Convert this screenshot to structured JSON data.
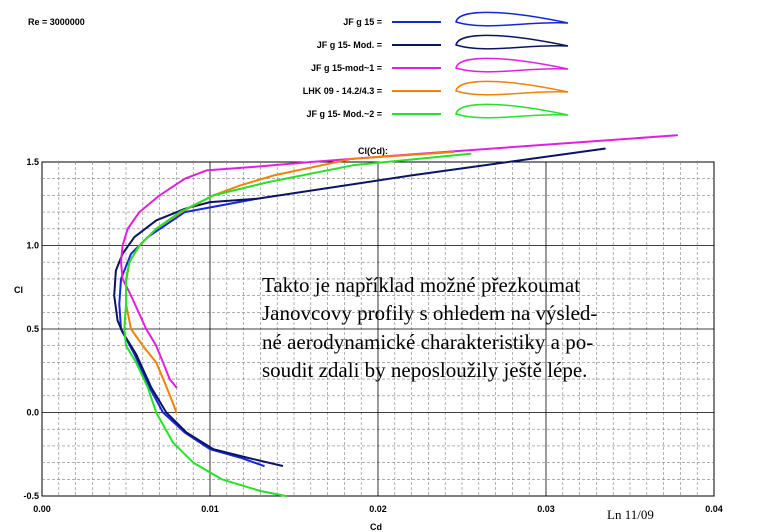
{
  "header": {
    "reynolds": "Re = 3000000"
  },
  "chart_data": {
    "type": "line",
    "title": "Cl(Cd):",
    "xlabel": "Cd",
    "ylabel": "Cl",
    "xlim": [
      0.0,
      0.04
    ],
    "ylim": [
      -0.5,
      1.5
    ],
    "x_ticks": [
      "0.00",
      "0.01",
      "0.02",
      "0.03",
      "0.04"
    ],
    "y_ticks": [
      "1.5",
      "1.0",
      "0.5",
      "0.0",
      "-0.5"
    ],
    "grid": true,
    "legend_position": "top",
    "series": [
      {
        "name": "JF g  15 =",
        "color": "#1428d8",
        "points": [
          [
            0.0128,
            1.28
          ],
          [
            0.0085,
            1.2
          ],
          [
            0.0063,
            1.05
          ],
          [
            0.0053,
            0.95
          ],
          [
            0.0047,
            0.8
          ],
          [
            0.0046,
            0.65
          ],
          [
            0.0047,
            0.5
          ],
          [
            0.0055,
            0.35
          ],
          [
            0.0064,
            0.15
          ],
          [
            0.0072,
            0.0
          ],
          [
            0.0085,
            -0.12
          ],
          [
            0.01,
            -0.22
          ],
          [
            0.0118,
            -0.27
          ],
          [
            0.0132,
            -0.32
          ]
        ]
      },
      {
        "name": "JF g  15- Mod. =",
        "color": "#0a1460",
        "points": [
          [
            0.0335,
            1.58
          ],
          [
            0.022,
            1.42
          ],
          [
            0.0128,
            1.28
          ],
          [
            0.01,
            1.26
          ],
          [
            0.0085,
            1.22
          ],
          [
            0.0068,
            1.15
          ],
          [
            0.0055,
            1.05
          ],
          [
            0.0048,
            0.95
          ],
          [
            0.0044,
            0.85
          ],
          [
            0.0043,
            0.7
          ],
          [
            0.0045,
            0.55
          ],
          [
            0.0048,
            0.48
          ],
          [
            0.0056,
            0.35
          ],
          [
            0.0065,
            0.15
          ],
          [
            0.0074,
            0.0
          ],
          [
            0.0086,
            -0.12
          ],
          [
            0.0102,
            -0.22
          ],
          [
            0.0122,
            -0.27
          ],
          [
            0.0143,
            -0.32
          ]
        ]
      },
      {
        "name": "JF g  15-mod~1 =",
        "color": "#e020e0",
        "points": [
          [
            0.0378,
            1.66
          ],
          [
            0.0295,
            1.6
          ],
          [
            0.0225,
            1.55
          ],
          [
            0.016,
            1.5
          ],
          [
            0.0125,
            1.47
          ],
          [
            0.0098,
            1.45
          ],
          [
            0.0085,
            1.4
          ],
          [
            0.007,
            1.3
          ],
          [
            0.0058,
            1.2
          ],
          [
            0.0051,
            1.1
          ],
          [
            0.0048,
            1.0
          ],
          [
            0.0047,
            0.9
          ],
          [
            0.0048,
            0.8
          ],
          [
            0.0053,
            0.7
          ],
          [
            0.0062,
            0.5
          ],
          [
            0.0068,
            0.4
          ],
          [
            0.0072,
            0.3
          ],
          [
            0.0076,
            0.2
          ],
          [
            0.008,
            0.15
          ]
        ]
      },
      {
        "name": "LHK 09 - 14.2/4.3 =",
        "color": "#f0820a",
        "points": [
          [
            0.0245,
            1.56
          ],
          [
            0.0185,
            1.52
          ],
          [
            0.0138,
            1.42
          ],
          [
            0.0118,
            1.36
          ],
          [
            0.0102,
            1.3
          ],
          [
            0.0083,
            1.2
          ],
          [
            0.0068,
            1.1
          ],
          [
            0.0058,
            1.0
          ],
          [
            0.0052,
            0.9
          ],
          [
            0.005,
            0.78
          ],
          [
            0.005,
            0.65
          ],
          [
            0.0053,
            0.5
          ],
          [
            0.006,
            0.4
          ],
          [
            0.0068,
            0.3
          ],
          [
            0.0073,
            0.18
          ],
          [
            0.0077,
            0.08
          ],
          [
            0.008,
            0.0
          ]
        ]
      },
      {
        "name": "JF g  15- Mod.~2 =",
        "color": "#28e028",
        "points": [
          [
            0.0255,
            1.55
          ],
          [
            0.0185,
            1.48
          ],
          [
            0.0135,
            1.38
          ],
          [
            0.0102,
            1.3
          ],
          [
            0.0082,
            1.2
          ],
          [
            0.0068,
            1.1
          ],
          [
            0.0058,
            1.0
          ],
          [
            0.0052,
            0.9
          ],
          [
            0.005,
            0.8
          ],
          [
            0.005,
            0.65
          ],
          [
            0.0049,
            0.5
          ],
          [
            0.005,
            0.4
          ],
          [
            0.0056,
            0.3
          ],
          [
            0.0063,
            0.15
          ],
          [
            0.0068,
            0.0
          ],
          [
            0.0078,
            -0.18
          ],
          [
            0.009,
            -0.3
          ],
          [
            0.0107,
            -0.4
          ],
          [
            0.013,
            -0.47
          ],
          [
            0.0145,
            -0.5
          ]
        ]
      }
    ]
  },
  "note_lines": [
    "Takto je například možné přezkoumat",
    "Janovcovy profily s ohledem na výsled-",
    "né aerodynamické charakteristiky a po-",
    "soudit zdali by neposloužily ještě lépe."
  ],
  "signature": "Ln 11/09"
}
